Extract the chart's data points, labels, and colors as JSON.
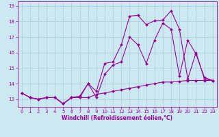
{
  "xlabel": "Windchill (Refroidissement éolien,°C)",
  "bg_color": "#cce8f0",
  "line_color": "#990099",
  "grid_color": "#aaccdd",
  "xlim": [
    -0.5,
    23.5
  ],
  "ylim": [
    12.5,
    19.3
  ],
  "xticks": [
    0,
    1,
    2,
    3,
    4,
    5,
    6,
    7,
    8,
    9,
    10,
    11,
    12,
    13,
    14,
    15,
    16,
    17,
    18,
    19,
    20,
    21,
    22,
    23
  ],
  "yticks": [
    13,
    14,
    15,
    16,
    17,
    18,
    19
  ],
  "line1_x": [
    0,
    1,
    2,
    3,
    4,
    5,
    6,
    7,
    8,
    9,
    10,
    11,
    12,
    13,
    14,
    15,
    16,
    17,
    18,
    19,
    20,
    21,
    22,
    23
  ],
  "line1_y": [
    13.4,
    13.1,
    13.0,
    13.1,
    13.1,
    12.7,
    13.1,
    13.1,
    13.1,
    13.3,
    13.4,
    13.5,
    13.6,
    13.7,
    13.8,
    13.9,
    14.0,
    14.1,
    14.1,
    14.15,
    14.2,
    14.2,
    14.2,
    14.2
  ],
  "line2_x": [
    0,
    1,
    2,
    3,
    4,
    5,
    6,
    7,
    8,
    9,
    10,
    11,
    12,
    13,
    14,
    15,
    16,
    17,
    18,
    19,
    20,
    21,
    22,
    23
  ],
  "line2_y": [
    13.4,
    13.1,
    13.0,
    13.1,
    13.1,
    12.7,
    13.1,
    13.1,
    14.0,
    13.1,
    14.6,
    15.2,
    15.4,
    17.0,
    16.5,
    15.3,
    16.8,
    17.9,
    17.5,
    14.5,
    16.8,
    15.9,
    14.4,
    14.2
  ],
  "line3_x": [
    0,
    1,
    2,
    3,
    4,
    5,
    6,
    7,
    8,
    9,
    10,
    11,
    12,
    13,
    14,
    15,
    16,
    17,
    18,
    19,
    20,
    21,
    22,
    23
  ],
  "line3_y": [
    13.4,
    13.1,
    13.0,
    13.1,
    13.1,
    12.7,
    13.1,
    13.2,
    14.0,
    13.5,
    15.3,
    15.4,
    16.5,
    18.35,
    18.4,
    17.8,
    18.05,
    18.1,
    18.7,
    17.5,
    14.3,
    16.0,
    14.3,
    14.2
  ],
  "marker": "D",
  "markersize": 2.0,
  "linewidth": 0.8,
  "tick_fontsize": 5,
  "xlabel_fontsize": 5.5
}
